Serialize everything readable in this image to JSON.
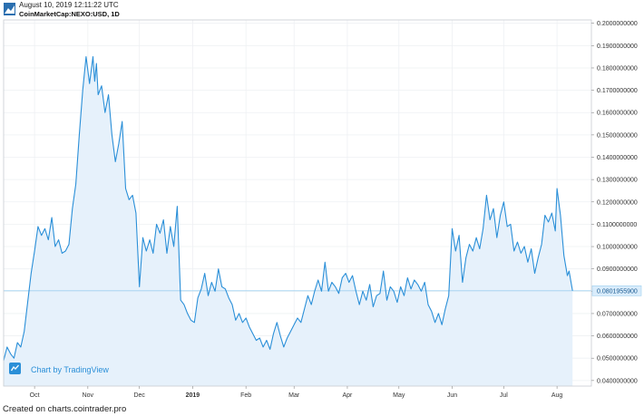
{
  "header": {
    "datetime": "August 10, 2019 12:11:22 UTC",
    "symbol": "CoinMarketCap:NEXO:USD, 1D"
  },
  "watermark": {
    "text": "Chart by TradingView"
  },
  "footer": {
    "text": "Created on charts.cointrader.pro"
  },
  "colors": {
    "line": "#2a8fd8",
    "fill": "#e6f1fb",
    "grid": "#eef0f3",
    "price_label_bg": "#d9ecfb"
  },
  "chart_data": {
    "type": "area",
    "title": "",
    "xlabel": "",
    "ylabel": "",
    "current_price_label": "0.0801955900",
    "ylim": [
      0.0375,
      0.2015
    ],
    "y_ticks": [
      0.04,
      0.05,
      0.06,
      0.07,
      0.08,
      0.09,
      0.1,
      0.11,
      0.12,
      0.13,
      0.14,
      0.15,
      0.16,
      0.17,
      0.18,
      0.19,
      0.2
    ],
    "y_tick_labels": [
      "0.0400000000",
      "0.0500000000",
      "0.0600000000",
      "0.0700000000",
      "0.0800000000",
      "0.0900000000",
      "0.1000000000",
      "0.1100000000",
      "0.1200000000",
      "0.1300000000",
      "0.1400000000",
      "0.1500000000",
      "0.1600000000",
      "0.1700000000",
      "0.1800000000",
      "0.1900000000",
      "0.2000000000"
    ],
    "x_ticks": [
      {
        "date": "2018-10-01",
        "label": "Oct",
        "bold": false
      },
      {
        "date": "2018-11-01",
        "label": "Nov",
        "bold": false
      },
      {
        "date": "2018-12-01",
        "label": "Dec",
        "bold": false
      },
      {
        "date": "2019-01-01",
        "label": "2019",
        "bold": true
      },
      {
        "date": "2019-02-01",
        "label": "Feb",
        "bold": false
      },
      {
        "date": "2019-03-01",
        "label": "Mar",
        "bold": false
      },
      {
        "date": "2019-04-01",
        "label": "Apr",
        "bold": false
      },
      {
        "date": "2019-05-01",
        "label": "May",
        "bold": false
      },
      {
        "date": "2019-06-01",
        "label": "Jun",
        "bold": false
      },
      {
        "date": "2019-07-01",
        "label": "Jul",
        "bold": false
      },
      {
        "date": "2019-08-01",
        "label": "Aug",
        "bold": false
      }
    ],
    "xlim": [
      "2018-09-13",
      "2019-08-21"
    ],
    "series": [
      {
        "data": [
          [
            "2018-09-13",
            0.049
          ],
          [
            "2018-09-15",
            0.055
          ],
          [
            "2018-09-17",
            0.052
          ],
          [
            "2018-09-19",
            0.05
          ],
          [
            "2018-09-21",
            0.057
          ],
          [
            "2018-09-23",
            0.055
          ],
          [
            "2018-09-25",
            0.062
          ],
          [
            "2018-09-27",
            0.075
          ],
          [
            "2018-09-29",
            0.088
          ],
          [
            "2018-10-01",
            0.098
          ],
          [
            "2018-10-03",
            0.109
          ],
          [
            "2018-10-05",
            0.105
          ],
          [
            "2018-10-07",
            0.108
          ],
          [
            "2018-10-09",
            0.103
          ],
          [
            "2018-10-11",
            0.113
          ],
          [
            "2018-10-13",
            0.1
          ],
          [
            "2018-10-15",
            0.103
          ],
          [
            "2018-10-17",
            0.097
          ],
          [
            "2018-10-19",
            0.098
          ],
          [
            "2018-10-21",
            0.101
          ],
          [
            "2018-10-23",
            0.117
          ],
          [
            "2018-10-25",
            0.128
          ],
          [
            "2018-10-27",
            0.15
          ],
          [
            "2018-10-29",
            0.17
          ],
          [
            "2018-10-31",
            0.185
          ],
          [
            "2018-11-02",
            0.173
          ],
          [
            "2018-11-04",
            0.185
          ],
          [
            "2018-11-05",
            0.174
          ],
          [
            "2018-11-06",
            0.182
          ],
          [
            "2018-11-07",
            0.168
          ],
          [
            "2018-11-09",
            0.172
          ],
          [
            "2018-11-11",
            0.16
          ],
          [
            "2018-11-13",
            0.168
          ],
          [
            "2018-11-15",
            0.15
          ],
          [
            "2018-11-17",
            0.138
          ],
          [
            "2018-11-19",
            0.146
          ],
          [
            "2018-11-21",
            0.156
          ],
          [
            "2018-11-23",
            0.126
          ],
          [
            "2018-11-25",
            0.121
          ],
          [
            "2018-11-27",
            0.123
          ],
          [
            "2018-11-29",
            0.115
          ],
          [
            "2018-12-01",
            0.082
          ],
          [
            "2018-12-03",
            0.104
          ],
          [
            "2018-12-05",
            0.098
          ],
          [
            "2018-12-07",
            0.103
          ],
          [
            "2018-12-09",
            0.097
          ],
          [
            "2018-12-11",
            0.11
          ],
          [
            "2018-12-13",
            0.106
          ],
          [
            "2018-12-15",
            0.112
          ],
          [
            "2018-12-17",
            0.097
          ],
          [
            "2018-12-19",
            0.109
          ],
          [
            "2018-12-21",
            0.1
          ],
          [
            "2018-12-23",
            0.118
          ],
          [
            "2018-12-25",
            0.076
          ],
          [
            "2018-12-27",
            0.074
          ],
          [
            "2018-12-29",
            0.07
          ],
          [
            "2018-12-31",
            0.067
          ],
          [
            "2019-01-02",
            0.066
          ],
          [
            "2019-01-04",
            0.077
          ],
          [
            "2019-01-06",
            0.081
          ],
          [
            "2019-01-08",
            0.088
          ],
          [
            "2019-01-10",
            0.078
          ],
          [
            "2019-01-12",
            0.084
          ],
          [
            "2019-01-14",
            0.08
          ],
          [
            "2019-01-16",
            0.09
          ],
          [
            "2019-01-18",
            0.082
          ],
          [
            "2019-01-20",
            0.081
          ],
          [
            "2019-01-22",
            0.077
          ],
          [
            "2019-01-24",
            0.074
          ],
          [
            "2019-01-26",
            0.067
          ],
          [
            "2019-01-28",
            0.07
          ],
          [
            "2019-01-30",
            0.066
          ],
          [
            "2019-02-01",
            0.068
          ],
          [
            "2019-02-03",
            0.064
          ],
          [
            "2019-02-05",
            0.061
          ],
          [
            "2019-02-07",
            0.058
          ],
          [
            "2019-02-09",
            0.059
          ],
          [
            "2019-02-11",
            0.055
          ],
          [
            "2019-02-13",
            0.058
          ],
          [
            "2019-02-15",
            0.054
          ],
          [
            "2019-02-17",
            0.061
          ],
          [
            "2019-02-19",
            0.066
          ],
          [
            "2019-02-21",
            0.06
          ],
          [
            "2019-02-23",
            0.055
          ],
          [
            "2019-02-25",
            0.059
          ],
          [
            "2019-02-27",
            0.062
          ],
          [
            "2019-03-01",
            0.065
          ],
          [
            "2019-03-03",
            0.068
          ],
          [
            "2019-03-05",
            0.066
          ],
          [
            "2019-03-07",
            0.072
          ],
          [
            "2019-03-09",
            0.078
          ],
          [
            "2019-03-11",
            0.074
          ],
          [
            "2019-03-13",
            0.08
          ],
          [
            "2019-03-15",
            0.085
          ],
          [
            "2019-03-17",
            0.08
          ],
          [
            "2019-03-19",
            0.093
          ],
          [
            "2019-03-21",
            0.08
          ],
          [
            "2019-03-23",
            0.084
          ],
          [
            "2019-03-25",
            0.082
          ],
          [
            "2019-03-27",
            0.079
          ],
          [
            "2019-03-29",
            0.086
          ],
          [
            "2019-03-31",
            0.088
          ],
          [
            "2019-04-02",
            0.084
          ],
          [
            "2019-04-04",
            0.087
          ],
          [
            "2019-04-06",
            0.08
          ],
          [
            "2019-04-08",
            0.074
          ],
          [
            "2019-04-10",
            0.08
          ],
          [
            "2019-04-12",
            0.076
          ],
          [
            "2019-04-14",
            0.083
          ],
          [
            "2019-04-16",
            0.073
          ],
          [
            "2019-04-18",
            0.078
          ],
          [
            "2019-04-20",
            0.079
          ],
          [
            "2019-04-22",
            0.089
          ],
          [
            "2019-04-24",
            0.076
          ],
          [
            "2019-04-26",
            0.082
          ],
          [
            "2019-04-28",
            0.08
          ],
          [
            "2019-04-30",
            0.075
          ],
          [
            "2019-05-02",
            0.082
          ],
          [
            "2019-05-04",
            0.078
          ],
          [
            "2019-05-06",
            0.086
          ],
          [
            "2019-05-08",
            0.081
          ],
          [
            "2019-05-10",
            0.085
          ],
          [
            "2019-05-12",
            0.083
          ],
          [
            "2019-05-14",
            0.08
          ],
          [
            "2019-05-16",
            0.084
          ],
          [
            "2019-05-18",
            0.074
          ],
          [
            "2019-05-20",
            0.071
          ],
          [
            "2019-05-22",
            0.066
          ],
          [
            "2019-05-24",
            0.07
          ],
          [
            "2019-05-26",
            0.065
          ],
          [
            "2019-05-28",
            0.072
          ],
          [
            "2019-05-30",
            0.078
          ],
          [
            "2019-06-01",
            0.108
          ],
          [
            "2019-06-03",
            0.098
          ],
          [
            "2019-06-05",
            0.105
          ],
          [
            "2019-06-07",
            0.084
          ],
          [
            "2019-06-09",
            0.095
          ],
          [
            "2019-06-11",
            0.101
          ],
          [
            "2019-06-13",
            0.098
          ],
          [
            "2019-06-15",
            0.104
          ],
          [
            "2019-06-17",
            0.099
          ],
          [
            "2019-06-19",
            0.108
          ],
          [
            "2019-06-21",
            0.123
          ],
          [
            "2019-06-23",
            0.112
          ],
          [
            "2019-06-25",
            0.117
          ],
          [
            "2019-06-27",
            0.104
          ],
          [
            "2019-06-29",
            0.114
          ],
          [
            "2019-07-01",
            0.12
          ],
          [
            "2019-07-03",
            0.109
          ],
          [
            "2019-07-05",
            0.11
          ],
          [
            "2019-07-07",
            0.098
          ],
          [
            "2019-07-09",
            0.102
          ],
          [
            "2019-07-11",
            0.097
          ],
          [
            "2019-07-13",
            0.1
          ],
          [
            "2019-07-15",
            0.093
          ],
          [
            "2019-07-17",
            0.099
          ],
          [
            "2019-07-19",
            0.088
          ],
          [
            "2019-07-21",
            0.095
          ],
          [
            "2019-07-23",
            0.101
          ],
          [
            "2019-07-25",
            0.114
          ],
          [
            "2019-07-27",
            0.111
          ],
          [
            "2019-07-29",
            0.115
          ],
          [
            "2019-07-31",
            0.107
          ],
          [
            "2019-08-01",
            0.126
          ],
          [
            "2019-08-03",
            0.114
          ],
          [
            "2019-08-05",
            0.096
          ],
          [
            "2019-08-07",
            0.087
          ],
          [
            "2019-08-08",
            0.089
          ],
          [
            "2019-08-10",
            0.0802
          ]
        ]
      }
    ],
    "grid": true,
    "legend": "none"
  }
}
